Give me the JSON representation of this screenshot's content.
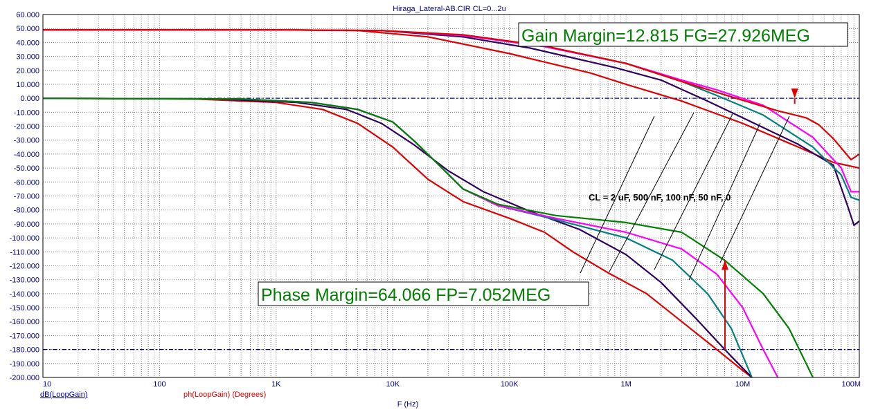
{
  "title": "Hiraga_Lateral-AB.CIR CL=0...2u",
  "legend": [
    {
      "label": "dB(LoopGain)",
      "color": "#0000c0"
    },
    {
      "label": "ph(LoopGain) (Degrees)",
      "color": "#e00000"
    }
  ],
  "annotations": {
    "gain_margin": "Gain Margin=12.815 FG=27.926MEG",
    "phase_margin": "Phase Margin=64.066 FP=7.052MEG",
    "cl_label": "CL = 2 uF, 500 nF, 100 nF, 50 nF, 0"
  },
  "colors": {
    "reference_line": "#0000c0",
    "grid": "#808080",
    "marker_arrow": "#e00000",
    "annotation_text": "#008000"
  },
  "chart_data": {
    "type": "line",
    "title": "Hiraga_Lateral-AB.CIR CL=0...2u",
    "xlabel": "F (Hz)",
    "x_scale": "log",
    "xlim": [
      10,
      100000000
    ],
    "x_ticks": [
      {
        "value": 10,
        "label": "10"
      },
      {
        "value": 100,
        "label": "100"
      },
      {
        "value": 1000,
        "label": "1K"
      },
      {
        "value": 10000,
        "label": "10K"
      },
      {
        "value": 100000,
        "label": "100K"
      },
      {
        "value": 1000000,
        "label": "1M"
      },
      {
        "value": 10000000,
        "label": "10M"
      },
      {
        "value": 100000000,
        "label": "100M"
      }
    ],
    "ylim": [
      -200,
      60
    ],
    "y_ticks": [
      60,
      50,
      40,
      30,
      20,
      10,
      0,
      -10,
      -20,
      -30,
      -40,
      -50,
      -60,
      -70,
      -80,
      -90,
      -100,
      -110,
      -120,
      -130,
      -140,
      -150,
      -160,
      -170,
      -180,
      -190,
      -200
    ],
    "y_tick_labels": [
      "60.000",
      "50.000",
      "40.000",
      "30.000",
      "20.000",
      "10.000",
      "0.000",
      "-10.000",
      "-20.000",
      "-30.000",
      "-40.000",
      "-50.000",
      "-60.000",
      "-70.000",
      "-80.000",
      "-90.000",
      "-100.000",
      "-110.000",
      "-120.000",
      "-130.000",
      "-140.000",
      "-150.000",
      "-160.000",
      "-170.000",
      "-180.000",
      "-190.000",
      "-200.000"
    ],
    "reference_lines": [
      0,
      -180
    ],
    "grid": true,
    "series": [
      {
        "color": "#e00000",
        "points": [
          [
            10,
            49
          ],
          [
            1000,
            49
          ],
          [
            5000,
            48.5
          ],
          [
            20000,
            44
          ],
          [
            100000,
            32
          ],
          [
            500000,
            18
          ],
          [
            1000000,
            10
          ],
          [
            3000000,
            -2
          ],
          [
            10000000,
            -18
          ],
          [
            30000000,
            -35
          ],
          [
            60000000,
            -46
          ],
          [
            100000000,
            -50
          ]
        ]
      },
      {
        "color": "#300060",
        "points": [
          [
            10,
            49
          ],
          [
            1000,
            49
          ],
          [
            8000,
            48.5
          ],
          [
            40000,
            44
          ],
          [
            150000,
            36
          ],
          [
            800000,
            22
          ],
          [
            2000000,
            13
          ],
          [
            5000000,
            -2
          ],
          [
            10000000,
            -14
          ],
          [
            30000000,
            -33
          ],
          [
            60000000,
            -48
          ],
          [
            80000000,
            -78
          ],
          [
            90000000,
            -91
          ],
          [
            100000000,
            -88
          ]
        ]
      },
      {
        "color": "#008080",
        "points": [
          [
            10,
            49
          ],
          [
            1000,
            49
          ],
          [
            8000,
            48.5
          ],
          [
            40000,
            45
          ],
          [
            200000,
            37
          ],
          [
            1000000,
            25
          ],
          [
            3000000,
            12
          ],
          [
            6000000,
            2
          ],
          [
            15000000,
            -12
          ],
          [
            40000000,
            -35
          ],
          [
            70000000,
            -55
          ],
          [
            85000000,
            -71
          ],
          [
            100000000,
            -73
          ]
        ]
      },
      {
        "color": "#ff00ff",
        "points": [
          [
            10,
            49
          ],
          [
            1000,
            49
          ],
          [
            8000,
            48.5
          ],
          [
            40000,
            45
          ],
          [
            200000,
            37
          ],
          [
            1000000,
            25
          ],
          [
            3000000,
            13
          ],
          [
            6000000,
            6
          ],
          [
            15000000,
            -5
          ],
          [
            40000000,
            -28
          ],
          [
            70000000,
            -50
          ],
          [
            85000000,
            -67
          ],
          [
            100000000,
            -67
          ]
        ]
      },
      {
        "color": "#e00000",
        "points": [
          [
            10,
            49
          ],
          [
            1000,
            49
          ],
          [
            8000,
            48.5
          ],
          [
            40000,
            45.5
          ],
          [
            200000,
            37.5
          ],
          [
            1000000,
            25
          ],
          [
            3000000,
            12
          ],
          [
            8000000,
            1
          ],
          [
            20000000,
            -9
          ],
          [
            35000000,
            -14
          ],
          [
            45000000,
            -19
          ],
          [
            60000000,
            -29
          ],
          [
            85000000,
            -44
          ],
          [
            100000000,
            -40
          ]
        ]
      },
      {
        "color": "#e00000",
        "points": [
          [
            10,
            0
          ],
          [
            200,
            -0.5
          ],
          [
            1000,
            -3
          ],
          [
            2500,
            -8
          ],
          [
            5000,
            -18
          ],
          [
            10000,
            -35
          ],
          [
            20000,
            -58
          ],
          [
            40000,
            -74
          ],
          [
            100000,
            -86
          ],
          [
            200000,
            -96
          ],
          [
            350000,
            -110
          ],
          [
            700000,
            -125
          ],
          [
            1500000,
            -140
          ],
          [
            3000000,
            -160
          ],
          [
            6000000,
            -180
          ],
          [
            10000000,
            -195
          ],
          [
            12000000,
            -200
          ]
        ]
      },
      {
        "color": "#300060",
        "points": [
          [
            10,
            0
          ],
          [
            300,
            -0.5
          ],
          [
            1500,
            -3
          ],
          [
            4000,
            -8
          ],
          [
            8000,
            -18
          ],
          [
            15000,
            -33
          ],
          [
            30000,
            -52
          ],
          [
            60000,
            -67
          ],
          [
            150000,
            -81
          ],
          [
            400000,
            -94
          ],
          [
            1000000,
            -112
          ],
          [
            2000000,
            -132
          ],
          [
            4000000,
            -158
          ],
          [
            8000000,
            -185
          ],
          [
            12000000,
            -200
          ]
        ]
      },
      {
        "color": "#008080",
        "points": [
          [
            10,
            0
          ],
          [
            500,
            -0.5
          ],
          [
            2000,
            -3
          ],
          [
            5000,
            -8
          ],
          [
            10000,
            -17
          ],
          [
            15000,
            -30
          ],
          [
            25000,
            -48
          ],
          [
            40000,
            -65
          ],
          [
            80000,
            -77
          ],
          [
            250000,
            -87
          ],
          [
            1000000,
            -100
          ],
          [
            2500000,
            -116
          ],
          [
            5000000,
            -140
          ],
          [
            8000000,
            -165
          ],
          [
            12000000,
            -200
          ]
        ]
      },
      {
        "color": "#ff00ff",
        "points": [
          [
            10,
            0
          ],
          [
            500,
            -0.5
          ],
          [
            2000,
            -3
          ],
          [
            5000,
            -8
          ],
          [
            10000,
            -17
          ],
          [
            15000,
            -30
          ],
          [
            25000,
            -48
          ],
          [
            40000,
            -65
          ],
          [
            80000,
            -77
          ],
          [
            250000,
            -86
          ],
          [
            1000000,
            -96
          ],
          [
            3000000,
            -108
          ],
          [
            6000000,
            -126
          ],
          [
            10000000,
            -150
          ],
          [
            15000000,
            -180
          ],
          [
            20000000,
            -200
          ]
        ]
      },
      {
        "color": "#008000",
        "points": [
          [
            10,
            0
          ],
          [
            500,
            -0.5
          ],
          [
            2000,
            -3
          ],
          [
            5000,
            -8
          ],
          [
            10000,
            -17
          ],
          [
            15000,
            -30
          ],
          [
            25000,
            -48
          ],
          [
            40000,
            -65
          ],
          [
            80000,
            -76
          ],
          [
            250000,
            -84
          ],
          [
            1000000,
            -89
          ],
          [
            3000000,
            -96
          ],
          [
            7000000,
            -116
          ],
          [
            15000000,
            -140
          ],
          [
            25000000,
            -165
          ],
          [
            35000000,
            -190
          ],
          [
            40000000,
            -200
          ]
        ]
      }
    ],
    "markers": [
      {
        "type": "arrow-down",
        "x": 27926000,
        "from": -4,
        "to": 0
      },
      {
        "type": "arrow-up",
        "x": 7052000,
        "from": -180,
        "to": -116
      }
    ]
  }
}
